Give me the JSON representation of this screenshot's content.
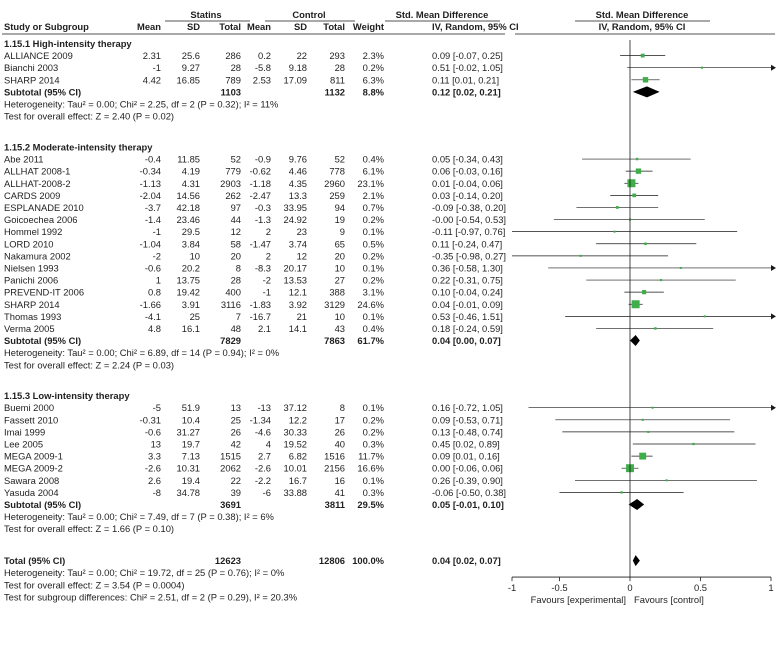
{
  "chart_data": {
    "type": "forest",
    "columns": {
      "group_statins": "Statins",
      "group_control": "Control",
      "study": "Study or Subgroup",
      "mean": "Mean",
      "sd": "SD",
      "total": "Total",
      "weight": "Weight",
      "effect_title": "Std. Mean Difference",
      "effect_method": "IV, Random, 95% CI"
    },
    "x_axis": {
      "ticks": [
        -1,
        -0.5,
        0,
        0.5,
        1
      ],
      "tick_labels": [
        "-1",
        "-0.5",
        "0",
        "0.5",
        "1"
      ],
      "range": [
        -1,
        1
      ],
      "label_left": "Favours [experimental]",
      "label_right": "Favours [control]"
    },
    "subgroups": [
      {
        "title": "1.15.1 High-intensity therapy",
        "studies": [
          {
            "name": "ALLIANCE 2009",
            "s_mean": "2.31",
            "s_sd": "25.6",
            "s_total": "286",
            "c_mean": "0.2",
            "c_sd": "22",
            "c_total": "293",
            "weight": "2.3%",
            "ci_text": "0.09 [-0.07, 0.25]",
            "est": 0.09,
            "lo": -0.07,
            "hi": 0.25,
            "w": 2.3
          },
          {
            "name": "Bianchi 2003",
            "s_mean": "-1",
            "s_sd": "9.27",
            "s_total": "28",
            "c_mean": "-5.8",
            "c_sd": "9.18",
            "c_total": "28",
            "weight": "0.2%",
            "ci_text": "0.51 [-0.02, 1.05]",
            "est": 0.51,
            "lo": -0.02,
            "hi": 1.05,
            "w": 0.2
          },
          {
            "name": "SHARP 2014",
            "s_mean": "4.42",
            "s_sd": "16.85",
            "s_total": "789",
            "c_mean": "2.53",
            "c_sd": "17.09",
            "c_total": "811",
            "weight": "6.3%",
            "ci_text": "0.11 [0.01, 0.21]",
            "est": 0.11,
            "lo": 0.01,
            "hi": 0.21,
            "w": 6.3
          }
        ],
        "subtotal": {
          "label": "Subtotal (95% CI)",
          "s_total": "1103",
          "c_total": "1132",
          "weight": "8.8%",
          "ci_text": "0.12 [0.02, 0.21]",
          "est": 0.12,
          "lo": 0.02,
          "hi": 0.21
        },
        "heterogeneity": "Heterogeneity: Tau² = 0.00; Chi² = 2.25, df = 2 (P = 0.32); I² = 11%",
        "overall_test": "Test for overall effect: Z = 2.40 (P = 0.02)"
      },
      {
        "title": "1.15.2 Moderate-intensity therapy",
        "studies": [
          {
            "name": "Abe 2011",
            "s_mean": "-0.4",
            "s_sd": "11.85",
            "s_total": "52",
            "c_mean": "-0.9",
            "c_sd": "9.76",
            "c_total": "52",
            "weight": "0.4%",
            "ci_text": "0.05 [-0.34, 0.43]",
            "est": 0.05,
            "lo": -0.34,
            "hi": 0.43,
            "w": 0.4
          },
          {
            "name": "ALLHAT 2008-1",
            "s_mean": "-0.34",
            "s_sd": "4.19",
            "s_total": "779",
            "c_mean": "-0.62",
            "c_sd": "4.46",
            "c_total": "778",
            "weight": "6.1%",
            "ci_text": "0.06 [-0.03, 0.16]",
            "est": 0.06,
            "lo": -0.03,
            "hi": 0.16,
            "w": 6.1
          },
          {
            "name": "ALLHAT-2008-2",
            "s_mean": "-1.13",
            "s_sd": "4.31",
            "s_total": "2903",
            "c_mean": "-1.18",
            "c_sd": "4.35",
            "c_total": "2960",
            "weight": "23.1%",
            "ci_text": "0.01 [-0.04, 0.06]",
            "est": 0.01,
            "lo": -0.04,
            "hi": 0.06,
            "w": 23.1
          },
          {
            "name": "CARDS 2009",
            "s_mean": "-2.04",
            "s_sd": "14.56",
            "s_total": "262",
            "c_mean": "-2.47",
            "c_sd": "13.3",
            "c_total": "259",
            "weight": "2.1%",
            "ci_text": "0.03 [-0.14, 0.20]",
            "est": 0.03,
            "lo": -0.14,
            "hi": 0.2,
            "w": 2.1
          },
          {
            "name": "ESPLANADE 2010",
            "s_mean": "-3.7",
            "s_sd": "42.18",
            "s_total": "97",
            "c_mean": "-0.3",
            "c_sd": "33.95",
            "c_total": "94",
            "weight": "0.7%",
            "ci_text": "-0.09 [-0.38, 0.20]",
            "est": -0.09,
            "lo": -0.38,
            "hi": 0.2,
            "w": 0.7
          },
          {
            "name": "Goicoechea 2006",
            "s_mean": "-1.4",
            "s_sd": "23.46",
            "s_total": "44",
            "c_mean": "-1.3",
            "c_sd": "24.92",
            "c_total": "19",
            "weight": "0.2%",
            "ci_text": "-0.00 [-0.54, 0.53]",
            "est": 0.0,
            "lo": -0.54,
            "hi": 0.53,
            "w": 0.2
          },
          {
            "name": "Hommel 1992",
            "s_mean": "-1",
            "s_sd": "29.5",
            "s_total": "12",
            "c_mean": "2",
            "c_sd": "23",
            "c_total": "9",
            "weight": "0.1%",
            "ci_text": "-0.11 [-0.97, 0.76]",
            "est": -0.11,
            "lo": -0.97,
            "hi": 0.76,
            "w": 0.1
          },
          {
            "name": "LORD 2010",
            "s_mean": "-1.04",
            "s_sd": "3.84",
            "s_total": "58",
            "c_mean": "-1.47",
            "c_sd": "3.74",
            "c_total": "65",
            "weight": "0.5%",
            "ci_text": "0.11 [-0.24, 0.47]",
            "est": 0.11,
            "lo": -0.24,
            "hi": 0.47,
            "w": 0.5
          },
          {
            "name": "Nakamura 2002",
            "s_mean": "-2",
            "s_sd": "10",
            "s_total": "20",
            "c_mean": "2",
            "c_sd": "12",
            "c_total": "20",
            "weight": "0.2%",
            "ci_text": "-0.35 [-0.98, 0.27]",
            "est": -0.35,
            "lo": -0.98,
            "hi": 0.27,
            "w": 0.2
          },
          {
            "name": "Nielsen 1993",
            "s_mean": "-0.6",
            "s_sd": "20.2",
            "s_total": "8",
            "c_mean": "-8.3",
            "c_sd": "20.17",
            "c_total": "10",
            "weight": "0.1%",
            "ci_text": "0.36 [-0.58, 1.30]",
            "est": 0.36,
            "lo": -0.58,
            "hi": 1.3,
            "w": 0.1
          },
          {
            "name": "Panichi 2006",
            "s_mean": "1",
            "s_sd": "13.75",
            "s_total": "28",
            "c_mean": "-2",
            "c_sd": "13.53",
            "c_total": "27",
            "weight": "0.2%",
            "ci_text": "0.22 [-0.31, 0.75]",
            "est": 0.22,
            "lo": -0.31,
            "hi": 0.75,
            "w": 0.2
          },
          {
            "name": "PREVEND-IT 2006",
            "s_mean": "0.8",
            "s_sd": "19.42",
            "s_total": "400",
            "c_mean": "-1",
            "c_sd": "12.1",
            "c_total": "388",
            "weight": "3.1%",
            "ci_text": "0.10 [-0.04, 0.24]",
            "est": 0.1,
            "lo": -0.04,
            "hi": 0.24,
            "w": 3.1
          },
          {
            "name": "SHARP 2014",
            "s_mean": "-1.66",
            "s_sd": "3.91",
            "s_total": "3116",
            "c_mean": "-1.83",
            "c_sd": "3.92",
            "c_total": "3129",
            "weight": "24.6%",
            "ci_text": "0.04 [-0.01, 0.09]",
            "est": 0.04,
            "lo": -0.01,
            "hi": 0.09,
            "w": 24.6
          },
          {
            "name": "Thomas 1993",
            "s_mean": "-4.1",
            "s_sd": "25",
            "s_total": "7",
            "c_mean": "-16.7",
            "c_sd": "21",
            "c_total": "10",
            "weight": "0.1%",
            "ci_text": "0.53 [-0.46, 1.51]",
            "est": 0.53,
            "lo": -0.46,
            "hi": 1.51,
            "w": 0.1
          },
          {
            "name": "Verma 2005",
            "s_mean": "4.8",
            "s_sd": "16.1",
            "s_total": "48",
            "c_mean": "2.1",
            "c_sd": "14.1",
            "c_total": "43",
            "weight": "0.4%",
            "ci_text": "0.18 [-0.24, 0.59]",
            "est": 0.18,
            "lo": -0.24,
            "hi": 0.59,
            "w": 0.4
          }
        ],
        "subtotal": {
          "label": "Subtotal (95% CI)",
          "s_total": "7829",
          "c_total": "7863",
          "weight": "61.7%",
          "ci_text": "0.04 [0.00, 0.07]",
          "est": 0.04,
          "lo": 0.0,
          "hi": 0.07
        },
        "heterogeneity": "Heterogeneity: Tau² = 0.00; Chi² = 6.89, df = 14 (P = 0.94); I² = 0%",
        "overall_test": "Test for overall effect: Z = 2.24 (P = 0.03)"
      },
      {
        "title": "1.15.3 Low-intensity therapy",
        "studies": [
          {
            "name": "Buemi 2000",
            "s_mean": "-5",
            "s_sd": "51.9",
            "s_total": "13",
            "c_mean": "-13",
            "c_sd": "37.12",
            "c_total": "8",
            "weight": "0.1%",
            "ci_text": "0.16 [-0.72, 1.05]",
            "est": 0.16,
            "lo": -0.72,
            "hi": 1.05,
            "w": 0.1
          },
          {
            "name": "Fassett 2010",
            "s_mean": "-0.31",
            "s_sd": "10.4",
            "s_total": "25",
            "c_mean": "-1.34",
            "c_sd": "12.2",
            "c_total": "17",
            "weight": "0.2%",
            "ci_text": "0.09 [-0.53, 0.71]",
            "est": 0.09,
            "lo": -0.53,
            "hi": 0.71,
            "w": 0.2
          },
          {
            "name": "Imai 1999",
            "s_mean": "-0.6",
            "s_sd": "31.27",
            "s_total": "26",
            "c_mean": "-4.6",
            "c_sd": "30.33",
            "c_total": "26",
            "weight": "0.2%",
            "ci_text": "0.13 [-0.48, 0.74]",
            "est": 0.13,
            "lo": -0.48,
            "hi": 0.74,
            "w": 0.2
          },
          {
            "name": "Lee 2005",
            "s_mean": "13",
            "s_sd": "19.7",
            "s_total": "42",
            "c_mean": "4",
            "c_sd": "19.52",
            "c_total": "40",
            "weight": "0.3%",
            "ci_text": "0.45 [0.02, 0.89]",
            "est": 0.45,
            "lo": 0.02,
            "hi": 0.89,
            "w": 0.3
          },
          {
            "name": "MEGA 2009-1",
            "s_mean": "3.3",
            "s_sd": "7.13",
            "s_total": "1515",
            "c_mean": "2.7",
            "c_sd": "6.82",
            "c_total": "1516",
            "weight": "11.7%",
            "ci_text": "0.09 [0.01, 0.16]",
            "est": 0.09,
            "lo": 0.01,
            "hi": 0.16,
            "w": 11.7
          },
          {
            "name": "MEGA 2009-2",
            "s_mean": "-2.6",
            "s_sd": "10.31",
            "s_total": "2062",
            "c_mean": "-2.6",
            "c_sd": "10.01",
            "c_total": "2156",
            "weight": "16.6%",
            "ci_text": "0.00 [-0.06, 0.06]",
            "est": 0.0,
            "lo": -0.06,
            "hi": 0.06,
            "w": 16.6
          },
          {
            "name": "Sawara 2008",
            "s_mean": "2.6",
            "s_sd": "19.4",
            "s_total": "22",
            "c_mean": "-2.2",
            "c_sd": "16.7",
            "c_total": "16",
            "weight": "0.1%",
            "ci_text": "0.26 [-0.39, 0.90]",
            "est": 0.26,
            "lo": -0.39,
            "hi": 0.9,
            "w": 0.1
          },
          {
            "name": "Yasuda 2004",
            "s_mean": "-8",
            "s_sd": "34.78",
            "s_total": "39",
            "c_mean": "-6",
            "c_sd": "33.88",
            "c_total": "41",
            "weight": "0.3%",
            "ci_text": "-0.06 [-0.50, 0.38]",
            "est": -0.06,
            "lo": -0.5,
            "hi": 0.38,
            "w": 0.3
          }
        ],
        "subtotal": {
          "label": "Subtotal (95% CI)",
          "s_total": "3691",
          "c_total": "3811",
          "weight": "29.5%",
          "ci_text": "0.05 [-0.01, 0.10]",
          "est": 0.05,
          "lo": -0.01,
          "hi": 0.1
        },
        "heterogeneity": "Heterogeneity: Tau² = 0.00; Chi² = 7.49, df = 7 (P = 0.38); I² = 6%",
        "overall_test": "Test for overall effect: Z = 1.66 (P = 0.10)"
      }
    ],
    "total": {
      "label": "Total (95% CI)",
      "s_total": "12623",
      "c_total": "12806",
      "weight": "100.0%",
      "ci_text": "0.04 [0.02, 0.07]",
      "est": 0.04,
      "lo": 0.02,
      "hi": 0.07
    },
    "total_heterogeneity": "Heterogeneity: Tau² = 0.00; Chi² = 19.72, df = 25 (P = 0.76); I² = 0%",
    "total_overall_test": "Test for overall effect: Z = 3.54 (P = 0.0004)",
    "subgroup_differences": "Test for subgroup differences: Chi² = 2.51, df = 2 (P = 0.29), I² = 20.3%",
    "colors": {
      "marker": "#3fae49",
      "diamond": "#000000",
      "line": "#1a1a1a"
    }
  }
}
